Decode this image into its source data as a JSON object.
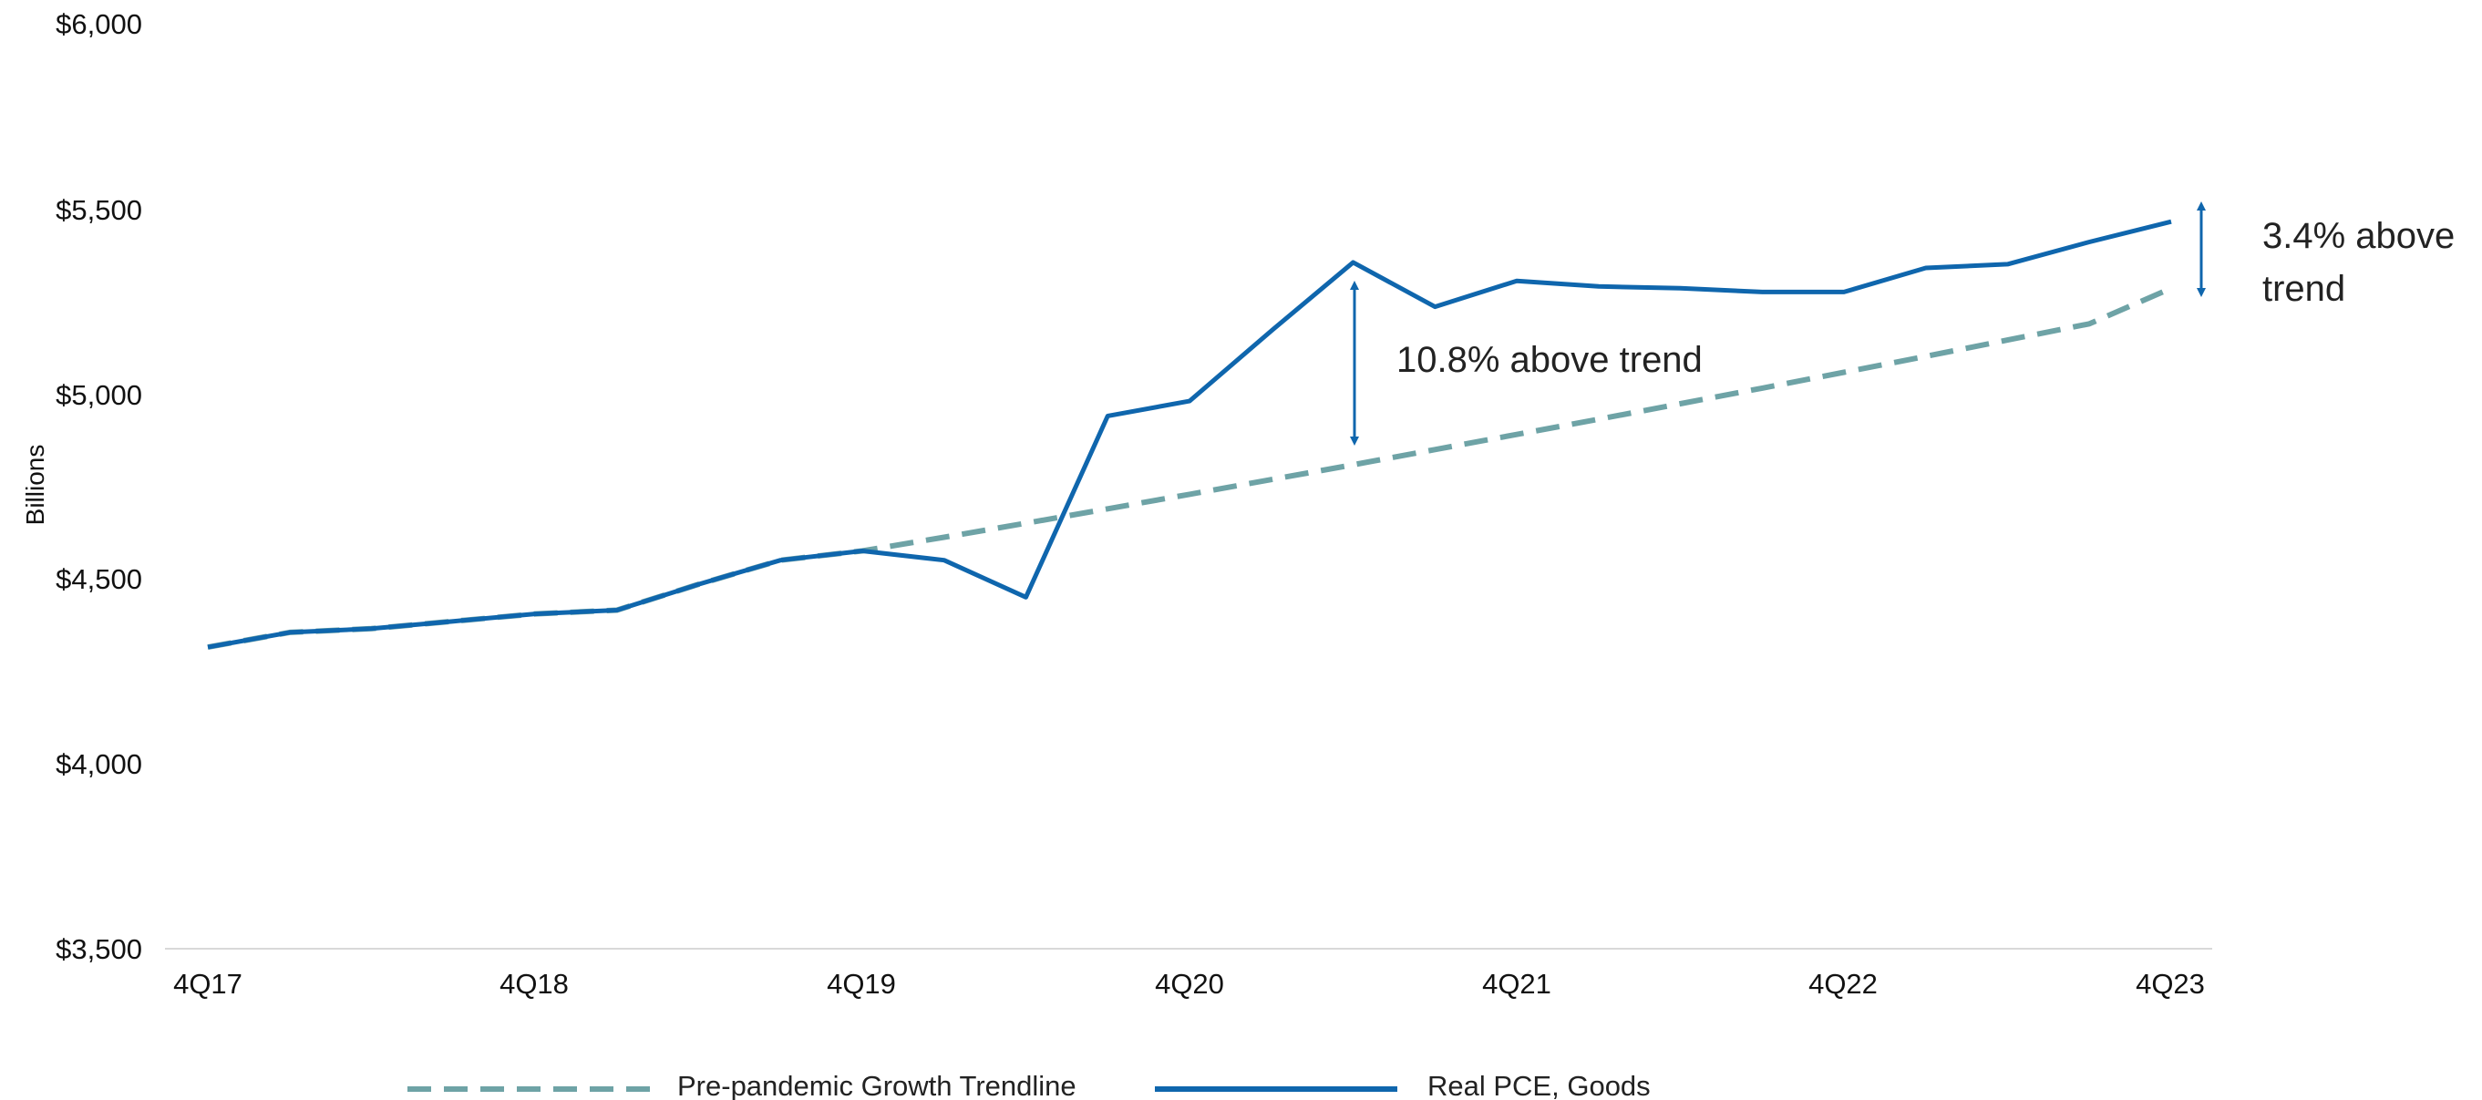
{
  "chart_data": {
    "type": "line",
    "title": "",
    "xlabel": "",
    "ylabel": "Billions",
    "ylim": [
      3500,
      6000
    ],
    "yticks": [
      "$3,500",
      "$4,000",
      "$4,500",
      "$5,000",
      "$5,500",
      "$6,000"
    ],
    "ytick_values": [
      3500,
      4000,
      4500,
      5000,
      5500,
      6000
    ],
    "x_tick_labels": [
      "4Q17",
      "4Q18",
      "4Q19",
      "4Q20",
      "4Q21",
      "4Q22",
      "4Q23"
    ],
    "categories": [
      "4Q17",
      "1Q18",
      "2Q18",
      "3Q18",
      "4Q18",
      "1Q19",
      "2Q19",
      "3Q19",
      "4Q19",
      "1Q20",
      "2Q20",
      "3Q20",
      "4Q20",
      "1Q21",
      "2Q21",
      "3Q21",
      "4Q21",
      "1Q22",
      "2Q22",
      "3Q22",
      "4Q22",
      "1Q23",
      "2Q23",
      "3Q23",
      "4Q23"
    ],
    "grid": false,
    "legend_position": "bottom",
    "series": [
      {
        "name": "Pre-pandemic Growth Trendline",
        "color": "#6ea3a6",
        "style": "dashed",
        "values": [
          4315,
          4355,
          4365,
          4385,
          4405,
          4415,
          4485,
          4550,
          4575,
          4612,
          4650,
          4689,
          4728,
          4768,
          4808,
          4849,
          4890,
          4931,
          4973,
          5015,
          5058,
          5101,
          5145,
          5189,
          5285
        ]
      },
      {
        "name": "Real PCE, Goods",
        "color": "#0f66ad",
        "style": "solid",
        "values": [
          4315,
          4355,
          4365,
          4385,
          4405,
          4415,
          4485,
          4550,
          4575,
          4550,
          4450,
          4940,
          4980,
          5170,
          5355,
          5235,
          5305,
          5290,
          5285,
          5275,
          5275,
          5340,
          5350,
          5410,
          5465
        ]
      }
    ],
    "annotations": [
      {
        "text": "10.8% above trend",
        "category": "3Q20"
      },
      {
        "text_line1": "3.4% above",
        "text_line2": "trend",
        "category": "4Q23"
      }
    ]
  }
}
